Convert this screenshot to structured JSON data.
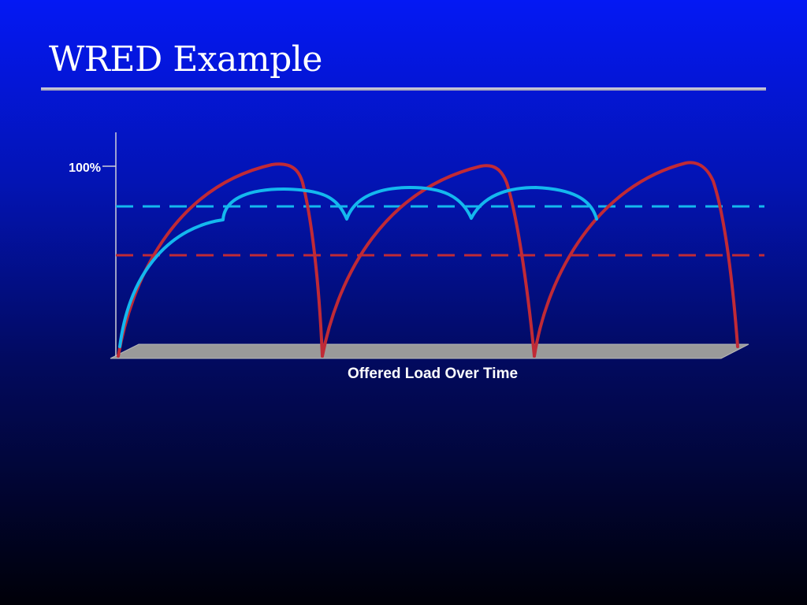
{
  "slide": {
    "title": "WRED Example"
  },
  "diagram": {
    "y_tick_label": "100%",
    "x_axis_label": "Offered Load Over Time",
    "colors": {
      "red_series": "#c02a36",
      "cyan_series": "#14b8ee",
      "axis": "#d0d0d8",
      "floor": "#9a9a9a"
    }
  }
}
